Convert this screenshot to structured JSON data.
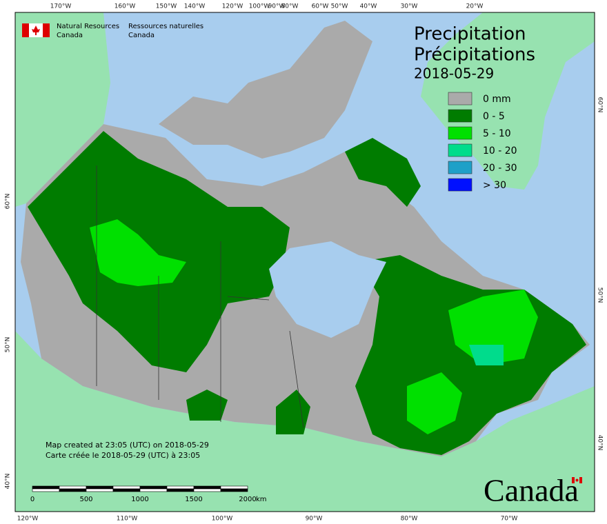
{
  "header": {
    "org_en_1": "Natural Resources",
    "org_en_2": "Canada",
    "org_fr_1": "Ressources naturelles",
    "org_fr_2": "Canada"
  },
  "title": {
    "line1": "Precipitation",
    "line2": "Précipitations",
    "date": "2018-05-29"
  },
  "legend": [
    {
      "label": "0 mm",
      "color": "#aaaaaa"
    },
    {
      "label": "0 - 5",
      "color": "#007c00"
    },
    {
      "label": "5 - 10",
      "color": "#00e000"
    },
    {
      "label": "10 - 20",
      "color": "#00dc8c"
    },
    {
      "label": "20 - 30",
      "color": "#1ea0c8"
    },
    {
      "label": "> 30",
      "color": "#0010ff"
    }
  ],
  "top_longitudes": [
    "170°W",
    "160°W",
    "150°W",
    "140°W",
    "120°W",
    "100°W",
    "90°W",
    "80°W",
    "60°W",
    "50°W",
    "40°W",
    "30°W",
    "20°W"
  ],
  "bottom_longitudes": [
    "120°W",
    "110°W",
    "100°W",
    "90°W",
    "80°W",
    "70°W"
  ],
  "left_latitudes": [
    "60°N",
    "50°N",
    "40°N"
  ],
  "right_latitudes": [
    "60°N",
    "50°N",
    "40°N"
  ],
  "footer": {
    "line_en": "Map created at 23:05 (UTC) on 2018-05-29",
    "line_fr": "Carte créée le 2018-05-29 (UTC) à 23:05"
  },
  "scale_bar": {
    "labels": [
      0,
      500,
      1000,
      1500,
      2000
    ],
    "unit": "km"
  },
  "wordmark": "Canada"
}
